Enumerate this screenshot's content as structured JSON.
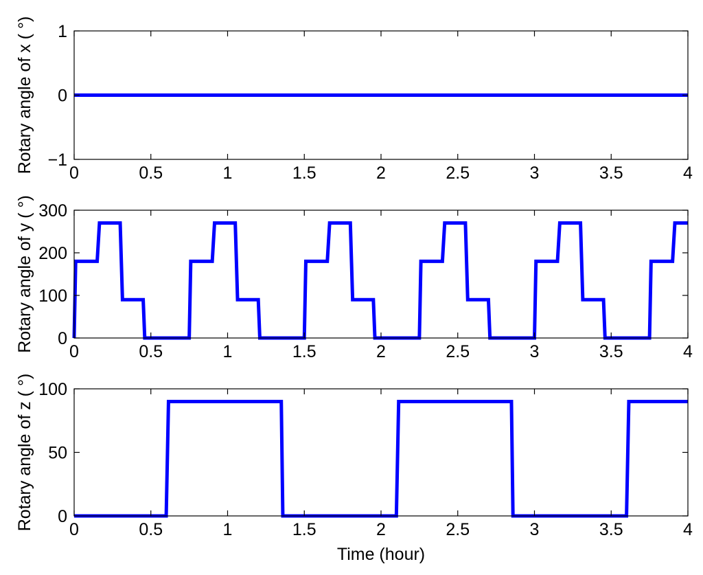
{
  "chart_data": [
    {
      "type": "line",
      "ylabel": "Rotary angle of x ( °)",
      "xlabel": "",
      "xlim": [
        0,
        4
      ],
      "ylim": [
        -1,
        1
      ],
      "x_ticks": [
        "0",
        "0.5",
        "1",
        "1.5",
        "2",
        "2.5",
        "3",
        "3.5",
        "4"
      ],
      "y_ticks": [
        {
          "value": -1,
          "label": "−1"
        },
        {
          "value": 0,
          "label": "0"
        },
        {
          "value": 1,
          "label": "1"
        }
      ],
      "grid": false,
      "series": [
        {
          "color": "#0000ff",
          "x": [
            0,
            4
          ],
          "y": [
            0,
            0
          ]
        }
      ]
    },
    {
      "type": "line",
      "ylabel": "Rotary angle of y ( °)",
      "xlabel": "",
      "xlim": [
        0,
        4
      ],
      "ylim": [
        0,
        300
      ],
      "x_ticks": [
        "0",
        "0.5",
        "1",
        "1.5",
        "2",
        "2.5",
        "3",
        "3.5",
        "4"
      ],
      "y_ticks": [
        {
          "value": 0,
          "label": "0"
        },
        {
          "value": 100,
          "label": "100"
        },
        {
          "value": 200,
          "label": "200"
        },
        {
          "value": 300,
          "label": "300"
        }
      ],
      "grid": false,
      "series": [
        {
          "color": "#0000ff",
          "x": [
            0,
            0.01,
            0.15,
            0.165,
            0.3,
            0.315,
            0.45,
            0.46,
            0.75,
            0.76,
            0.9,
            0.915,
            1.05,
            1.065,
            1.2,
            1.21,
            1.5,
            1.51,
            1.65,
            1.665,
            1.8,
            1.815,
            1.95,
            1.96,
            2.25,
            2.26,
            2.4,
            2.415,
            2.55,
            2.565,
            2.7,
            2.71,
            3.0,
            3.01,
            3.15,
            3.165,
            3.3,
            3.315,
            3.45,
            3.46,
            3.75,
            3.76,
            3.9,
            3.915,
            4.0
          ],
          "y": [
            0,
            180,
            180,
            270,
            270,
            90,
            90,
            0,
            0,
            180,
            180,
            270,
            270,
            90,
            90,
            0,
            0,
            180,
            180,
            270,
            270,
            90,
            90,
            0,
            0,
            180,
            180,
            270,
            270,
            90,
            90,
            0,
            0,
            180,
            180,
            270,
            270,
            90,
            90,
            0,
            0,
            180,
            180,
            270,
            270
          ]
        }
      ]
    },
    {
      "type": "line",
      "ylabel": "Rotary angle of z ( °)",
      "xlabel": "Time (hour)",
      "xlim": [
        0,
        4
      ],
      "ylim": [
        0,
        100
      ],
      "x_ticks": [
        "0",
        "0.5",
        "1",
        "1.5",
        "2",
        "2.5",
        "3",
        "3.5",
        "4"
      ],
      "y_ticks": [
        {
          "value": 0,
          "label": "0"
        },
        {
          "value": 50,
          "label": "50"
        },
        {
          "value": 100,
          "label": "100"
        }
      ],
      "grid": false,
      "series": [
        {
          "color": "#0000ff",
          "x": [
            0,
            0.6,
            0.615,
            1.35,
            1.36,
            2.1,
            2.115,
            2.85,
            2.86,
            3.6,
            3.615,
            4.0
          ],
          "y": [
            0,
            0,
            90,
            90,
            0,
            0,
            90,
            90,
            0,
            0,
            90,
            90
          ]
        }
      ]
    }
  ]
}
